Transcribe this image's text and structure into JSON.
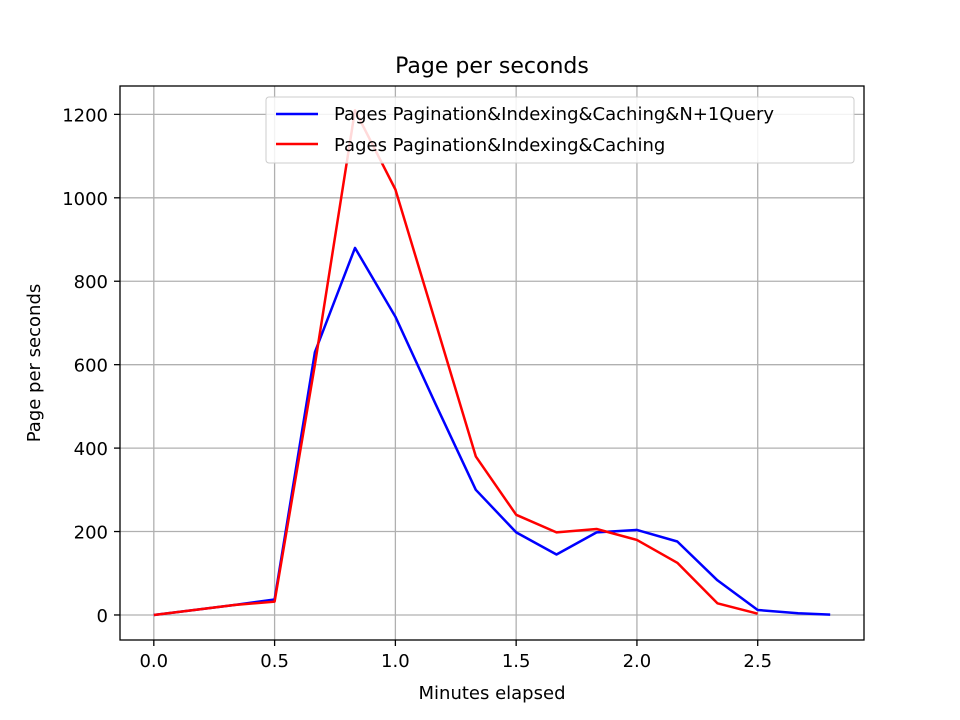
{
  "chart_data": {
    "type": "line",
    "title": "Page per seconds",
    "xlabel": "Minutes elapsed",
    "ylabel": "Page per seconds",
    "xlim": [
      -0.14,
      2.94
    ],
    "ylim": [
      -60,
      1268
    ],
    "xticks": [
      0.0,
      0.5,
      1.0,
      1.5,
      2.0,
      2.5
    ],
    "xtick_labels": [
      "0.0",
      "0.5",
      "1.0",
      "1.5",
      "2.0",
      "2.5"
    ],
    "yticks": [
      0,
      200,
      400,
      600,
      800,
      1000,
      1200
    ],
    "ytick_labels": [
      "0",
      "200",
      "400",
      "600",
      "800",
      "1000",
      "1200"
    ],
    "grid": true,
    "legend_position": "top-right",
    "series": [
      {
        "name": "Pages Pagination&Indexing&Caching&N+1Query",
        "color": "#0000ff",
        "x": [
          0.0,
          0.167,
          0.333,
          0.5,
          0.667,
          0.833,
          1.0,
          1.167,
          1.333,
          1.5,
          1.667,
          1.833,
          2.0,
          2.167,
          2.333,
          2.5,
          2.667,
          2.8
        ],
        "y": [
          0,
          12,
          24,
          37,
          630,
          880,
          715,
          505,
          300,
          198,
          145,
          198,
          204,
          176,
          83,
          12,
          4,
          1
        ]
      },
      {
        "name": "Pages Pagination&Indexing&Caching",
        "color": "#ff0000",
        "x": [
          0.0,
          0.167,
          0.333,
          0.5,
          0.667,
          0.833,
          1.0,
          1.167,
          1.333,
          1.5,
          1.667,
          1.833,
          2.0,
          2.167,
          2.333,
          2.5
        ],
        "y": [
          0,
          12,
          24,
          32,
          600,
          1210,
          1020,
          700,
          380,
          240,
          198,
          206,
          180,
          125,
          28,
          3
        ]
      }
    ]
  }
}
